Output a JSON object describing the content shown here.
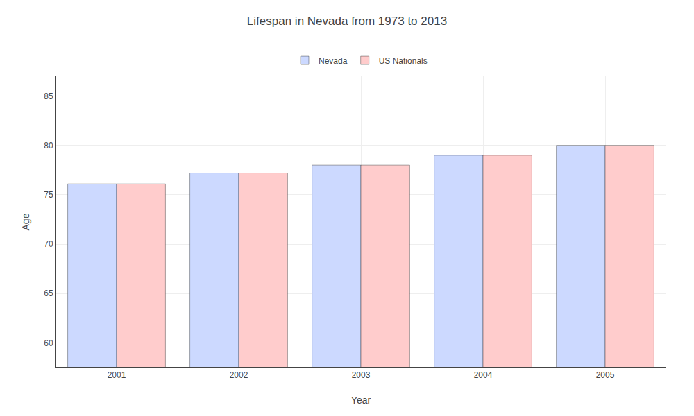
{
  "chart_data": {
    "type": "bar",
    "title": "Lifespan in Nevada from 1973 to 2013",
    "xlabel": "Year",
    "ylabel": "Age",
    "categories": [
      "2001",
      "2002",
      "2003",
      "2004",
      "2005"
    ],
    "series": [
      {
        "name": "Nevada",
        "color": "#ccd9ff",
        "values": [
          76.1,
          77.2,
          78.0,
          79.0,
          80.0
        ]
      },
      {
        "name": "US Nationals",
        "color": "#ffcccc",
        "values": [
          76.1,
          77.2,
          78.0,
          79.0,
          80.0
        ]
      }
    ],
    "ylim": [
      57.5,
      87
    ],
    "yticks": [
      60,
      65,
      70,
      75,
      80,
      85
    ],
    "grid": true,
    "legend": "top"
  }
}
